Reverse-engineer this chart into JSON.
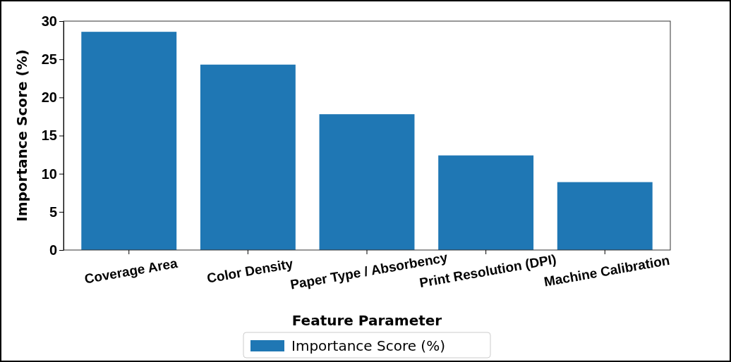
{
  "chart_data": {
    "type": "bar",
    "xlabel": "Feature Parameter",
    "ylabel": "Importance Score (%)",
    "categories": [
      "Coverage Area",
      "Color Density",
      "Paper Type / Absorbency",
      "Print Resolution (DPI)",
      "Machine Calibration"
    ],
    "series": [
      {
        "name": "Importance Score (%)",
        "color": "#1f77b4",
        "values": [
          28.6,
          24.3,
          17.8,
          12.4,
          8.9
        ]
      }
    ],
    "ylim": [
      0,
      30
    ],
    "yticks": [
      0,
      5,
      10,
      15,
      20,
      25,
      30
    ],
    "legend": "bottom"
  }
}
